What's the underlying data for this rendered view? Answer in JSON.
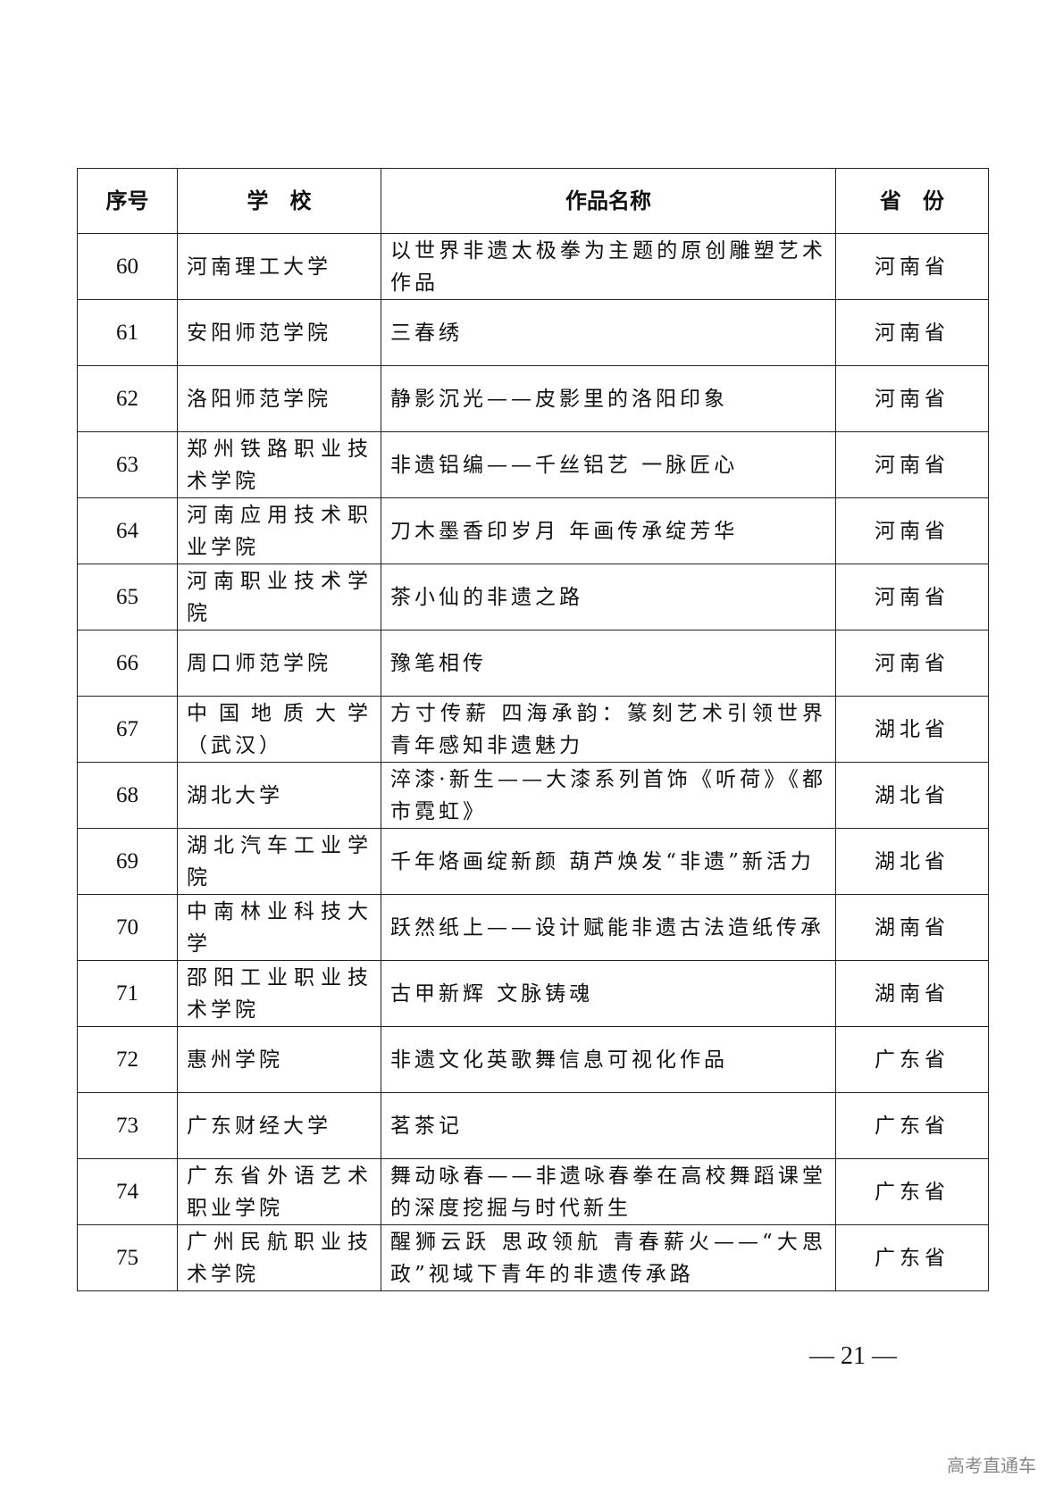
{
  "headers": {
    "no": "序号",
    "school": "学　校",
    "work": "作品名称",
    "province": "省　份"
  },
  "rows": [
    {
      "no": "60",
      "school": "河南理工大学",
      "work": "以世界非遗太极拳为主题的原创雕塑艺术作品",
      "province": "河南省"
    },
    {
      "no": "61",
      "school": "安阳师范学院",
      "work": "三春绣",
      "province": "河南省"
    },
    {
      "no": "62",
      "school": "洛阳师范学院",
      "work": "静影沉光——皮影里的洛阳印象",
      "province": "河南省"
    },
    {
      "no": "63",
      "school": "郑州铁路职业技术学院",
      "work": "非遗铝编——千丝铝艺 一脉匠心",
      "province": "河南省"
    },
    {
      "no": "64",
      "school": "河南应用技术职业学院",
      "work": "刀木墨香印岁月 年画传承绽芳华",
      "province": "河南省"
    },
    {
      "no": "65",
      "school": "河南职业技术学院",
      "work": "茶小仙的非遗之路",
      "province": "河南省"
    },
    {
      "no": "66",
      "school": "周口师范学院",
      "work": "豫笔相传",
      "province": "河南省"
    },
    {
      "no": "67",
      "school": "中国地质大学（武汉）",
      "work": "方寸传薪 四海承韵：篆刻艺术引领世界青年感知非遗魅力",
      "province": "湖北省"
    },
    {
      "no": "68",
      "school": "湖北大学",
      "work": "淬漆·新生——大漆系列首饰《听荷》《都市霓虹》",
      "province": "湖北省"
    },
    {
      "no": "69",
      "school": "湖北汽车工业学院",
      "work": "千年烙画绽新颜 葫芦焕发“非遗”新活力",
      "province": "湖北省"
    },
    {
      "no": "70",
      "school": "中南林业科技大学",
      "work": "跃然纸上——设计赋能非遗古法造纸传承",
      "province": "湖南省"
    },
    {
      "no": "71",
      "school": "邵阳工业职业技术学院",
      "work": "古甲新辉 文脉铸魂",
      "province": "湖南省"
    },
    {
      "no": "72",
      "school": "惠州学院",
      "work": "非遗文化英歌舞信息可视化作品",
      "province": "广东省"
    },
    {
      "no": "73",
      "school": "广东财经大学",
      "work": "茗茶记",
      "province": "广东省"
    },
    {
      "no": "74",
      "school": "广东省外语艺术职业学院",
      "work": "舞动咏春——非遗咏春拳在高校舞蹈课堂的深度挖掘与时代新生",
      "province": "广东省"
    },
    {
      "no": "75",
      "school": "广州民航职业技术学院",
      "work": "醒狮云跃 思政领航 青春薪火——“大思政”视域下青年的非遗传承路",
      "province": "广东省"
    }
  ],
  "page_number": "— 21 —",
  "watermark": "高考直通车"
}
